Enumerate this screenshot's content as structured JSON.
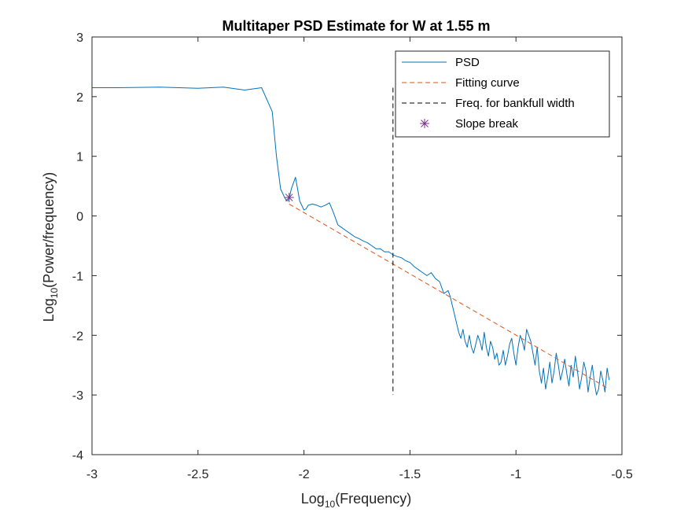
{
  "chart_data": {
    "type": "line",
    "title": "Multitaper PSD Estimate for W at 1.55 m",
    "xlabel": {
      "base": "Log",
      "sub": "10",
      "rest": "(Frequency)"
    },
    "ylabel": {
      "base": "Log",
      "sub": "10",
      "rest": "(Power/frequency)"
    },
    "xlim": [
      -3,
      -0.5
    ],
    "ylim": [
      -4,
      3
    ],
    "xticks": [
      -3,
      -2.5,
      -2,
      -1.5,
      -1,
      -0.5
    ],
    "xtick_labels": [
      "-3",
      "-2.5",
      "-2",
      "-1.5",
      "-1",
      "-0.5"
    ],
    "yticks": [
      -4,
      -3,
      -2,
      -1,
      0,
      1,
      2,
      3
    ],
    "ytick_labels": [
      "-4",
      "-3",
      "-2",
      "-1",
      "0",
      "1",
      "2",
      "3"
    ],
    "grid": false,
    "legend_position": "top-right",
    "series": [
      {
        "name": "PSD",
        "kind": "line",
        "color": "#0072BD",
        "x": [
          -3.0,
          -2.88,
          -2.68,
          -2.5,
          -2.38,
          -2.28,
          -2.2,
          -2.15,
          -2.13,
          -2.11,
          -2.09,
          -2.08,
          -2.07,
          -2.06,
          -2.05,
          -2.04,
          -2.03,
          -2.02,
          -2.0,
          -1.99,
          -1.98,
          -1.96,
          -1.94,
          -1.92,
          -1.9,
          -1.88,
          -1.86,
          -1.84,
          -1.82,
          -1.8,
          -1.78,
          -1.76,
          -1.74,
          -1.72,
          -1.7,
          -1.68,
          -1.66,
          -1.64,
          -1.62,
          -1.6,
          -1.58,
          -1.56,
          -1.54,
          -1.52,
          -1.5,
          -1.48,
          -1.46,
          -1.44,
          -1.42,
          -1.4,
          -1.38,
          -1.36,
          -1.34,
          -1.32,
          -1.31,
          -1.3,
          -1.29,
          -1.28,
          -1.27,
          -1.26,
          -1.25,
          -1.24,
          -1.23,
          -1.22,
          -1.21,
          -1.2,
          -1.19,
          -1.18,
          -1.17,
          -1.16,
          -1.15,
          -1.14,
          -1.13,
          -1.12,
          -1.11,
          -1.1,
          -1.09,
          -1.08,
          -1.07,
          -1.06,
          -1.05,
          -1.04,
          -1.03,
          -1.02,
          -1.01,
          -1.0,
          -0.99,
          -0.98,
          -0.97,
          -0.96,
          -0.95,
          -0.94,
          -0.93,
          -0.92,
          -0.91,
          -0.9,
          -0.89,
          -0.88,
          -0.87,
          -0.86,
          -0.85,
          -0.84,
          -0.83,
          -0.82,
          -0.81,
          -0.8,
          -0.79,
          -0.78,
          -0.77,
          -0.76,
          -0.75,
          -0.74,
          -0.73,
          -0.72,
          -0.71,
          -0.7,
          -0.69,
          -0.68,
          -0.67,
          -0.66,
          -0.65,
          -0.64,
          -0.63,
          -0.62,
          -0.61,
          -0.6,
          -0.59,
          -0.58,
          -0.57,
          -0.56
        ],
        "y": [
          2.15,
          2.15,
          2.16,
          2.14,
          2.16,
          2.11,
          2.15,
          1.75,
          1.0,
          0.45,
          0.3,
          0.25,
          0.28,
          0.45,
          0.55,
          0.65,
          0.45,
          0.25,
          0.1,
          0.12,
          0.18,
          0.2,
          0.18,
          0.15,
          0.18,
          0.22,
          0.05,
          -0.15,
          -0.2,
          -0.25,
          -0.3,
          -0.35,
          -0.38,
          -0.42,
          -0.45,
          -0.5,
          -0.55,
          -0.55,
          -0.6,
          -0.6,
          -0.65,
          -0.68,
          -0.7,
          -0.75,
          -0.78,
          -0.85,
          -0.9,
          -0.95,
          -1.0,
          -0.95,
          -1.05,
          -1.1,
          -1.3,
          -1.25,
          -1.35,
          -1.5,
          -1.65,
          -1.8,
          -1.95,
          -2.05,
          -1.9,
          -2.1,
          -2.2,
          -2.0,
          -2.2,
          -2.3,
          -2.15,
          -2.0,
          -2.1,
          -2.25,
          -1.95,
          -2.2,
          -2.35,
          -2.1,
          -2.2,
          -2.4,
          -2.3,
          -2.5,
          -2.45,
          -2.25,
          -2.5,
          -2.35,
          -2.15,
          -2.05,
          -2.3,
          -2.5,
          -2.2,
          -2.0,
          -2.1,
          -2.25,
          -1.9,
          -2.0,
          -2.1,
          -2.3,
          -2.5,
          -2.2,
          -2.6,
          -2.8,
          -2.55,
          -2.9,
          -2.7,
          -2.45,
          -2.8,
          -2.6,
          -2.3,
          -2.5,
          -2.75,
          -2.6,
          -2.4,
          -2.65,
          -2.85,
          -2.5,
          -2.7,
          -2.35,
          -2.6,
          -2.9,
          -2.7,
          -2.45,
          -2.6,
          -2.95,
          -2.7,
          -2.5,
          -2.8,
          -3.0,
          -2.9,
          -2.6,
          -2.75,
          -2.95,
          -2.55,
          -2.75
        ]
      },
      {
        "name": "Fitting curve",
        "kind": "dashed",
        "color": "#D95319",
        "x": [
          -2.07,
          -0.56
        ],
        "y": [
          0.2,
          -2.9
        ]
      },
      {
        "name": "Freq. for bankfull width",
        "kind": "dashed",
        "color": "#000000",
        "x": [
          -1.58,
          -1.58
        ],
        "y": [
          2.15,
          -3.0
        ]
      },
      {
        "name": "Slope break",
        "kind": "marker",
        "color": "#7E2F8E",
        "x": [
          -2.07
        ],
        "y": [
          0.31
        ]
      }
    ]
  }
}
